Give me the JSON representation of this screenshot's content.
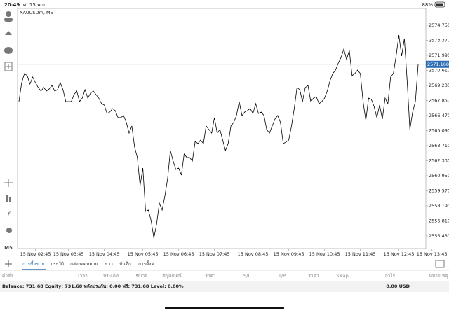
{
  "status_bar": {
    "time": "20:49",
    "date": "ศ. 15 พ.ย.",
    "battery": "88%"
  },
  "toolbar": {
    "timeframe": "M5"
  },
  "chart_data": {
    "type": "line",
    "title": "XAUUSDm, M5",
    "color": "#000000",
    "values": [
      2567.75,
      2569.49,
      2570.32,
      2570.13,
      2569.36,
      2570.0,
      2569.49,
      2569.04,
      2568.72,
      2569.04,
      2568.72,
      2568.91,
      2569.23,
      2568.72,
      2568.84,
      2569.49,
      2568.84,
      2567.75,
      2567.75,
      2567.75,
      2568.39,
      2568.72,
      2567.75,
      2568.07,
      2568.84,
      2568.07,
      2568.52,
      2568.72,
      2568.39,
      2568.07,
      2567.56,
      2567.43,
      2566.66,
      2566.79,
      2567.11,
      2566.92,
      2566.28,
      2566.28,
      2566.47,
      2565.83,
      2564.86,
      2565.51,
      2563.58,
      2562.62,
      2560.05,
      2561.65,
      2557.67,
      2557.8,
      2556.84,
      2555.23,
      2556.52,
      2558.44,
      2557.8,
      2559.09,
      2560.69,
      2563.26,
      2562.3,
      2561.52,
      2561.65,
      2561.01,
      2562.94,
      2562.62,
      2562.62,
      2562.3,
      2564.09,
      2563.9,
      2564.22,
      2563.9,
      2565.51,
      2565.18,
      2564.86,
      2566.28,
      2564.86,
      2565.18,
      2564.22,
      2563.26,
      2563.9,
      2565.51,
      2565.83,
      2566.47,
      2567.75,
      2566.47,
      2566.79,
      2566.92,
      2567.11,
      2566.66,
      2567.56,
      2566.66,
      2566.79,
      2566.47,
      2565.18,
      2564.86,
      2565.51,
      2566.15,
      2566.47,
      2565.83,
      2563.9,
      2564.03,
      2564.22,
      2565.51,
      2567.11,
      2569.04,
      2568.84,
      2567.75,
      2569.04,
      2569.23,
      2567.75,
      2568.07,
      2568.2,
      2567.56,
      2567.75,
      2568.07,
      2568.72,
      2569.68,
      2570.32,
      2570.64,
      2571.28,
      2571.8,
      2572.57,
      2571.6,
      2572.44,
      2570.13,
      2570.32,
      2570.64,
      2570.32,
      2567.75,
      2566.02,
      2568.07,
      2567.95,
      2567.3,
      2566.28,
      2567.43,
      2566.15,
      2568.07,
      2567.56,
      2570.0,
      2570.32,
      2571.93,
      2573.85,
      2571.93,
      2573.53,
      2569.68,
      2565.18,
      2566.79,
      2567.75,
      2571.15
    ],
    "xlim": [
      0,
      145
    ],
    "xticks": [
      {
        "value": 6,
        "label": "15 Nov 02:45"
      },
      {
        "value": 18,
        "label": "15 Nov 03:45"
      },
      {
        "value": 31,
        "label": "15 Nov 04:45"
      },
      {
        "value": 45,
        "label": "15 Nov 05:45"
      },
      {
        "value": 58,
        "label": "15 Nov 06:45"
      },
      {
        "value": 71,
        "label": "15 Nov 07:45"
      },
      {
        "value": 85,
        "label": "15 Nov 08:45"
      },
      {
        "value": 98,
        "label": "15 Nov 09:45"
      },
      {
        "value": 111,
        "label": "15 Nov 10:45"
      },
      {
        "value": 124,
        "label": "15 Nov 11:45"
      },
      {
        "value": 138,
        "label": "15 Nov 12:45"
      },
      {
        "value": 150,
        "label": "15 Nov 13:45"
      }
    ],
    "ylim": [
      2554.27,
      2576.29
    ],
    "yticks": [
      {
        "value": 2574.75,
        "label": "2574.750"
      },
      {
        "value": 2573.37,
        "label": "2573.370"
      },
      {
        "value": 2571.99,
        "label": "2571.990"
      },
      {
        "value": 2570.61,
        "label": "2570.610"
      },
      {
        "value": 2569.23,
        "label": "2569.230"
      },
      {
        "value": 2567.85,
        "label": "2567.850"
      },
      {
        "value": 2566.47,
        "label": "2566.470"
      },
      {
        "value": 2565.09,
        "label": "2565.090"
      },
      {
        "value": 2563.71,
        "label": "2563.710"
      },
      {
        "value": 2562.33,
        "label": "2562.330"
      },
      {
        "value": 2560.95,
        "label": "2560.950"
      },
      {
        "value": 2559.57,
        "label": "2559.570"
      },
      {
        "value": 2558.19,
        "label": "2558.190"
      },
      {
        "value": 2556.81,
        "label": "2556.810"
      },
      {
        "value": 2555.43,
        "label": "2555.430"
      }
    ],
    "current_price": {
      "value": 2571.168,
      "label": "2571.168",
      "color": "#2f6db5"
    },
    "grid": false
  },
  "tabs": [
    "การซื้อขาย",
    "ประวัติ",
    "กล่องจดหมาย",
    "ข่าว",
    "บันทึก",
    "การตั้งค่า"
  ],
  "columns": [
    "คำสั่ง",
    "เวลา",
    "ประเภท",
    "ขนาด",
    "สัญลักษณ์",
    "ราคา",
    "S/L",
    "T/P",
    "ราคา",
    "Swap",
    "กำไร",
    "หมายเหตุ"
  ],
  "balance": {
    "summary": "Balance: 731.68 Equity: 731.68 หลักประกัน: 0.00 ฟรี: 731.68 Level: 0.00%",
    "total": "0.00 USD"
  }
}
